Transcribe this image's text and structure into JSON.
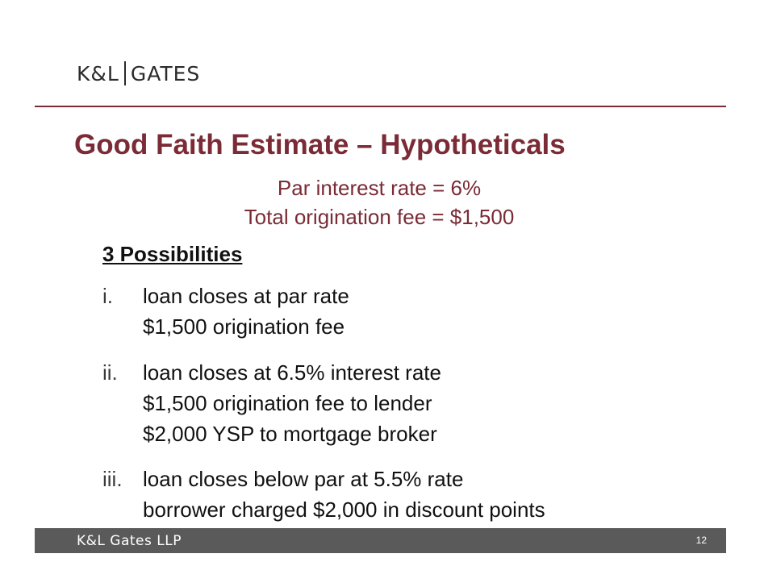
{
  "header": {
    "logo_left": "K&L",
    "logo_right": "GATES"
  },
  "slide": {
    "title": "Good Faith Estimate – Hypotheticals",
    "subtitle_lines": [
      "Par interest rate = 6%",
      "Total origination fee = $1,500"
    ],
    "section_heading": "3 Possibilities",
    "items": [
      {
        "num": "i.",
        "lines": [
          "loan closes at par rate",
          "$1,500 origination fee"
        ]
      },
      {
        "num": "ii.",
        "lines": [
          "loan closes at 6.5% interest rate",
          "$1,500 origination fee to lender",
          "$2,000 YSP to mortgage broker"
        ]
      },
      {
        "num": "iii.",
        "lines": [
          "loan closes below par at 5.5% rate",
          "borrower charged $2,000 in discount points"
        ]
      }
    ]
  },
  "footer": {
    "logo": "K&L Gates LLP",
    "page_number": "12"
  },
  "colors": {
    "accent": "#7a2b36",
    "footer_bg": "#5a5a5a"
  }
}
